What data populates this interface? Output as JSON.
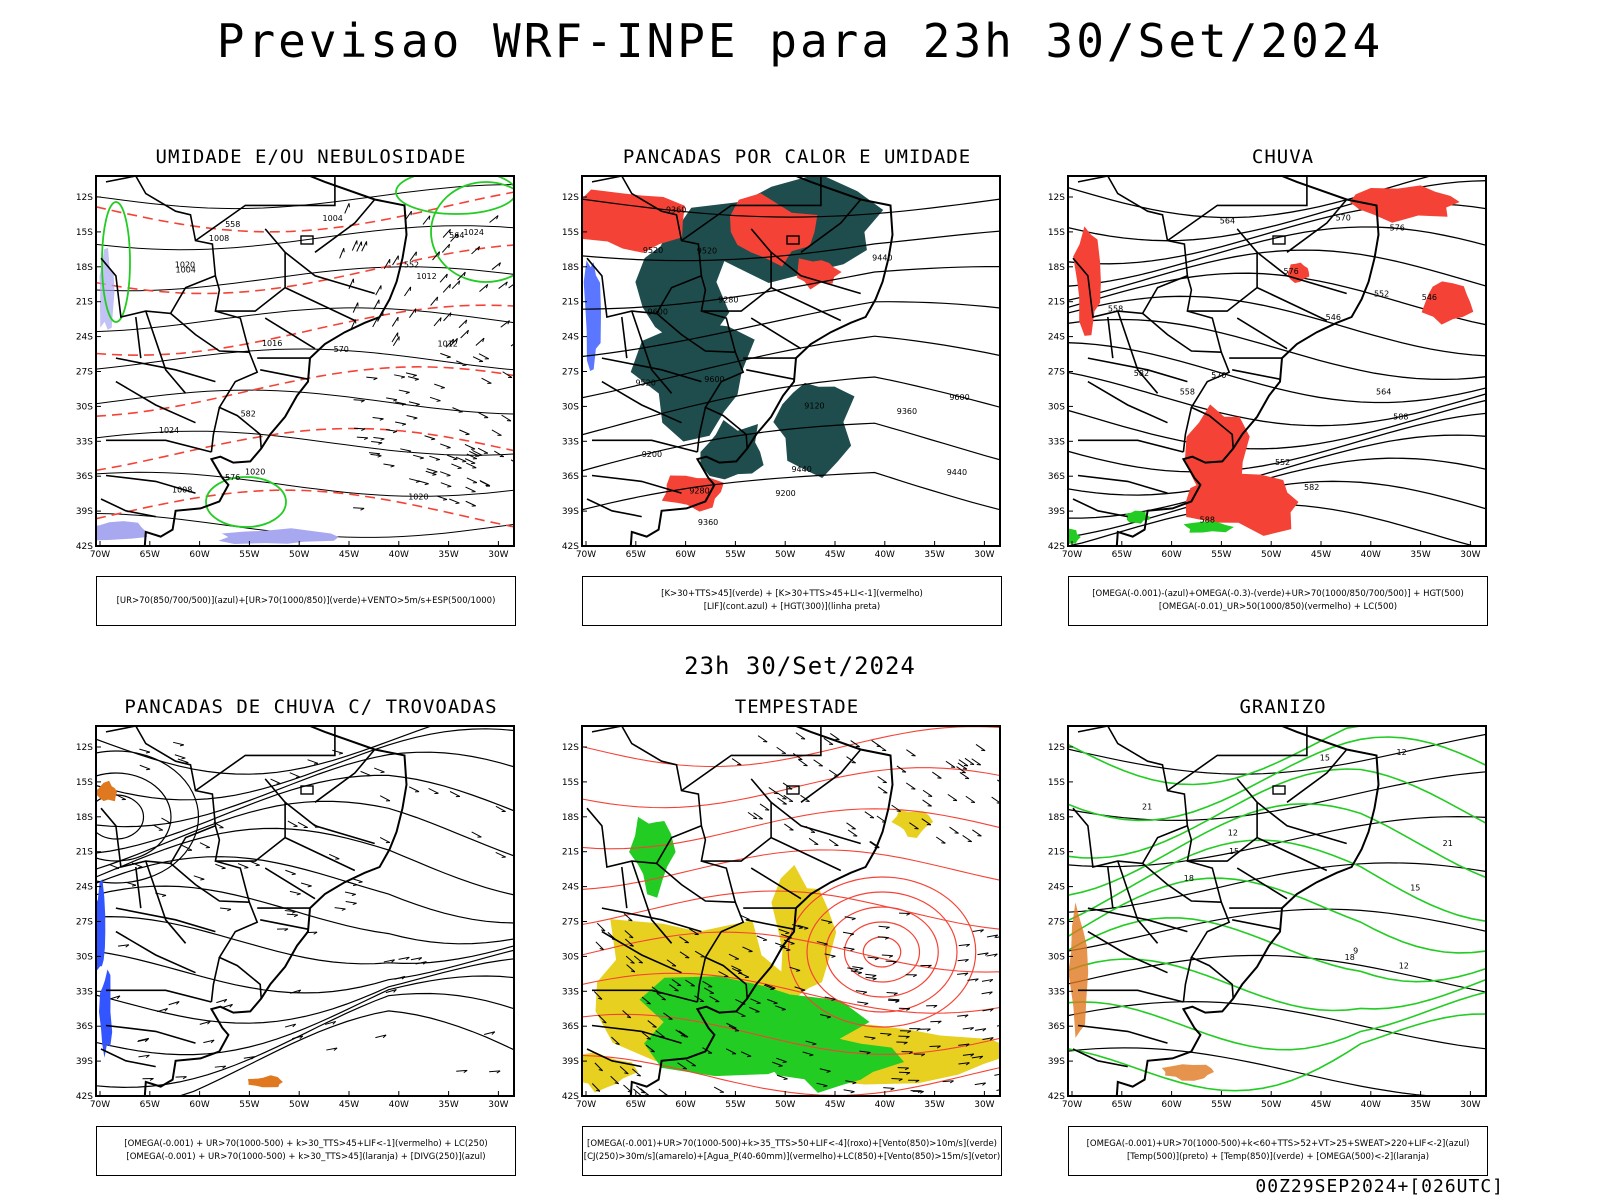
{
  "header": {
    "title": "Previsao WRF-INPE  para 23h 30/Set/2024"
  },
  "middle_title": "23h 30/Set/2024",
  "footer": "00Z29SEP2024+[026UTC]",
  "axes": {
    "lat_labels": [
      "12S",
      "15S",
      "18S",
      "21S",
      "24S",
      "27S",
      "30S",
      "33S",
      "36S",
      "39S",
      "42S"
    ],
    "lon_labels": [
      "70W",
      "65W",
      "60W",
      "55W",
      "50W",
      "45W",
      "40W",
      "35W",
      "30W"
    ]
  },
  "panels": [
    {
      "title": "UMIDADE E/OU NEBULOSIDADE",
      "legend": [
        "[UR>70(850/700/500)](azul)+[UR>70(1000/850)](verde)+VENTO>5m/s+ESP(500/1000)"
      ],
      "labels": [
        "1008",
        "1012",
        "1016",
        "1020",
        "1024",
        "1004",
        "570",
        "576",
        "582",
        "564",
        "552",
        "558",
        "1020",
        "1024",
        "1020",
        "1004",
        "1008",
        "1012"
      ]
    },
    {
      "title": "PANCADAS POR CALOR E UMIDADE",
      "legend": [
        "[K>30+TTS>45](verde) + [K>30+TTS>45+LI<-1](vermelho)",
        "[LIF](cont.azul) + [HGT(300)](linha preta)"
      ],
      "labels": [
        "9600",
        "9520",
        "9440",
        "9360",
        "9280",
        "9200",
        "9120",
        "9600",
        "9520",
        "9440",
        "9360",
        "9280",
        "9200",
        "9600",
        "9520",
        "9440",
        "9360"
      ]
    },
    {
      "title": "CHUVA",
      "legend": [
        "[OMEGA(-0.001)-(azul)+OMEGA(-0.3)-(verde)+UR>70(1000/850/700/500)] + HGT(500)",
        "[OMEGA(-0.01)_UR>50(1000/850)(vermelho) + LC(500)"
      ],
      "labels": [
        "588",
        "582",
        "576",
        "570",
        "564",
        "558",
        "552",
        "546",
        "588",
        "582",
        "576",
        "570",
        "564",
        "558",
        "552",
        "546"
      ]
    },
    {
      "title": "PANCADAS DE CHUVA C/ TROVOADAS",
      "legend": [
        "[OMEGA(-0.001) + UR>70(1000-500) + k>30_TTS>45+LIF<-1](vermelho) + LC(250)",
        "[OMEGA(-0.001) + UR>70(1000-500) + k>30_TTS>45](laranja) + [DIVG(250)](azul)"
      ],
      "labels": []
    },
    {
      "title": "TEMPESTADE",
      "legend": [
        "[OMEGA(-0.001)+UR>70(1000-500)+k>35_TTS>50+LIF<-4](roxo)+[Vento(850)>10m/s](verde)",
        "[CJ(250)>30m/s](amarelo)+[Agua_P(40-60mm)](vermelho)+LC(850)+[Vento(850)>15m/s](vetor)"
      ],
      "labels": []
    },
    {
      "title": "GRANIZO",
      "legend": [
        "[OMEGA(-0.001)+UR>70(1000-500)+k<60+TTS>52+VT>25+SWEAT>220+LIF<-2](azul)",
        "[Temp(500)](preto) + [Temp(850)](verde) + [OMEGA(500)<-2](laranja)"
      ],
      "labels": [
        "12",
        "15",
        "18",
        "21",
        "9",
        "12",
        "15",
        "18",
        "21",
        "12",
        "15"
      ]
    }
  ],
  "colors": {
    "red": "#f44336",
    "green": "#22cc22",
    "dark": "#1f4d4d",
    "yellow": "#e8d020",
    "blue": "#3355ff",
    "orange": "#e07820",
    "lavender": "#a8a8f0",
    "contour": "#000000"
  }
}
